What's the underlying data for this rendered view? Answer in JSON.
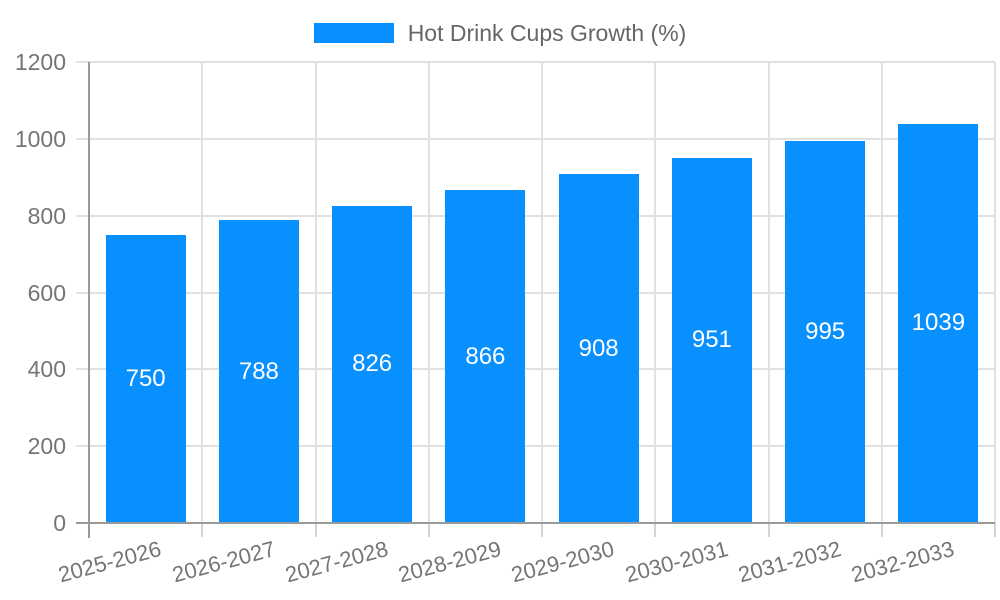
{
  "chart_data": {
    "type": "bar",
    "title": "",
    "legend": {
      "label": "Hot Drink Cups Growth (%)",
      "position": "top-center"
    },
    "categories": [
      "2025-2026",
      "2026-2027",
      "2027-2028",
      "2028-2029",
      "2029-2030",
      "2030-2031",
      "2031-2032",
      "2032-2033"
    ],
    "series": [
      {
        "name": "Hot Drink Cups Growth (%)",
        "values": [
          750,
          788,
          826,
          866,
          908,
          951,
          995,
          1039
        ]
      }
    ],
    "bar_value_labels": [
      "750",
      "788",
      "826",
      "866",
      "908",
      "951",
      "995",
      "1039"
    ],
    "xlabel": "",
    "ylabel": "",
    "ylim": [
      0,
      1200
    ],
    "yticks": [
      0,
      200,
      400,
      600,
      800,
      1000,
      1200
    ],
    "grid": true,
    "x_label_rotation_deg": -15,
    "colors": {
      "bar": "#0990FF",
      "bar_label": "#FFFFFF",
      "axis_line": "#999999",
      "grid_line": "#E1E1E1",
      "tick_line": "#D4D4D4",
      "axis_text": "#757575",
      "legend_text": "#666666",
      "background": "#FFFFFF"
    }
  }
}
